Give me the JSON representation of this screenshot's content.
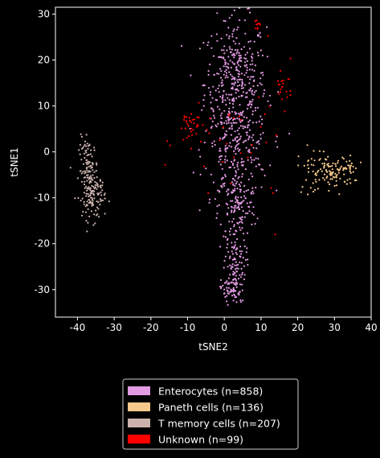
{
  "chart_data": {
    "type": "scatter",
    "title": "",
    "xlabel": "tSNE2",
    "ylabel": "tSNE1",
    "xlim": [
      -46,
      40
    ],
    "ylim": [
      -36,
      31.5
    ],
    "xticks": [
      -40,
      -30,
      -20,
      -10,
      0,
      10,
      20,
      30,
      40
    ],
    "yticks": [
      -30,
      -20,
      -10,
      0,
      10,
      20,
      30
    ],
    "grid": false,
    "background": "#000000",
    "legend_position": "below",
    "series": [
      {
        "name": "Enterocytes (n=858)",
        "color": "#e29ae2",
        "n": 858,
        "clusters": [
          {
            "cx": 3,
            "cy": 15,
            "sx": 4.2,
            "sy": 7,
            "share": 0.45
          },
          {
            "cx": 3.5,
            "cy": 0,
            "sx": 4.5,
            "sy": 5,
            "share": 0.22
          },
          {
            "cx": 3.5,
            "cy": -12,
            "sx": 2.6,
            "sy": 4,
            "share": 0.15
          },
          {
            "cx": 2.8,
            "cy": -25,
            "sx": 1.5,
            "sy": 4,
            "share": 0.13
          },
          {
            "cx": 1.5,
            "cy": -30,
            "sx": 1.2,
            "sy": 1.5,
            "share": 0.05
          }
        ]
      },
      {
        "name": "Paneth cells (n=136)",
        "color": "#f5c98c",
        "n": 136,
        "clusters": [
          {
            "cx": 30,
            "cy": -4.5,
            "sx": 2.6,
            "sy": 1.8,
            "share": 0.6
          },
          {
            "cx": 24,
            "cy": -4,
            "sx": 2,
            "sy": 2.5,
            "share": 0.25
          },
          {
            "cx": 34,
            "cy": -3.5,
            "sx": 1.2,
            "sy": 1,
            "share": 0.15
          }
        ]
      },
      {
        "name": "T memory cells (n=207)",
        "color": "#cbb3ad",
        "n": 207,
        "clusters": [
          {
            "cx": -37,
            "cy": -4,
            "sx": 1.3,
            "sy": 3.5,
            "share": 0.55
          },
          {
            "cx": -35.5,
            "cy": -10,
            "sx": 1.5,
            "sy": 2.5,
            "share": 0.45
          }
        ]
      },
      {
        "name": "Unknown (n=99)",
        "color": "#ff0000",
        "n": 99,
        "clusters": [
          {
            "cx": -9,
            "cy": 5.5,
            "sx": 1.8,
            "sy": 2,
            "share": 0.35
          },
          {
            "cx": 16,
            "cy": 15,
            "sx": 1.2,
            "sy": 2.5,
            "share": 0.2
          },
          {
            "cx": 9,
            "cy": 27,
            "sx": 0.5,
            "sy": 0.6,
            "share": 0.1
          },
          {
            "cx": 5,
            "cy": 2,
            "sx": 8,
            "sy": 8,
            "share": 0.35
          }
        ]
      }
    ]
  }
}
